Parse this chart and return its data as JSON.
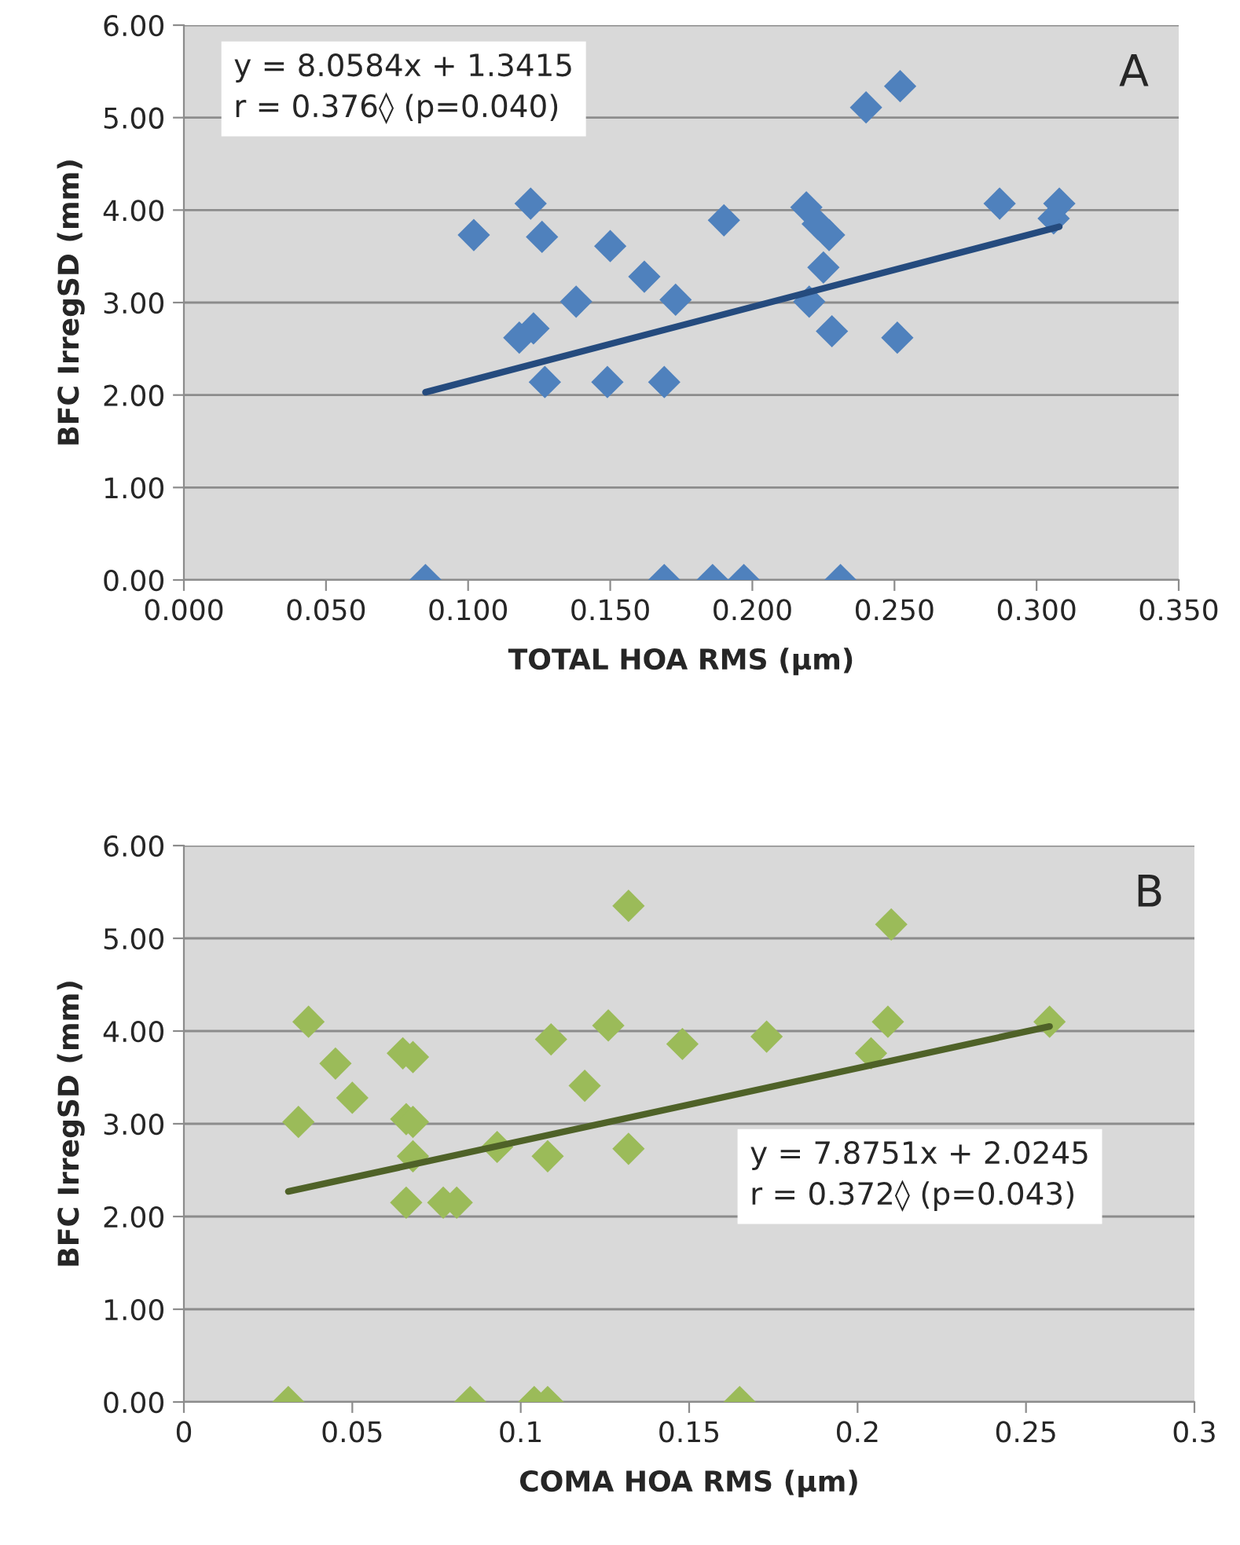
{
  "chart_data": [
    {
      "type": "scatter",
      "xlabel": "TOTAL HOA RMS (µm)",
      "ylabel": "BFC IrregSD (mm)",
      "annotations": [
        "y = 8.0584x + 1.3415\nr = 0.376◊ (p=0.040)",
        "A"
      ],
      "xlim": [
        0,
        0.35
      ],
      "ylim": [
        0,
        6
      ],
      "xticks": [
        {
          "value": 0,
          "label": "0.000"
        },
        {
          "value": 0.05,
          "label": "0.050"
        },
        {
          "value": 0.1,
          "label": "0.100"
        },
        {
          "value": 0.15,
          "label": "0.150"
        },
        {
          "value": 0.2,
          "label": "0.200"
        },
        {
          "value": 0.25,
          "label": "0.250"
        },
        {
          "value": 0.3,
          "label": "0.300"
        },
        {
          "value": 0.35,
          "label": "0.350"
        }
      ],
      "yticks": [
        {
          "value": 0,
          "label": "0.00"
        },
        {
          "value": 1,
          "label": "1.00"
        },
        {
          "value": 2,
          "label": "2.00"
        },
        {
          "value": 3,
          "label": "3.00"
        },
        {
          "value": 4,
          "label": "4.00"
        },
        {
          "value": 5,
          "label": "5.00"
        },
        {
          "value": 6,
          "label": "6.00"
        }
      ],
      "grid": "y",
      "series": [
        {
          "marker": "diamond",
          "color": "#4f81bd",
          "x": [
            0.085,
            0.102,
            0.122,
            0.126,
            0.118,
            0.123,
            0.127,
            0.138,
            0.15,
            0.149,
            0.162,
            0.173,
            0.169,
            0.169,
            0.186,
            0.197,
            0.19,
            0.219,
            0.223,
            0.227,
            0.225,
            0.22,
            0.228,
            0.231,
            0.24,
            0.252,
            0.251,
            0.287,
            0.306,
            0.308
          ],
          "values": [
            0,
            3.73,
            4.07,
            3.71,
            2.62,
            2.72,
            2.14,
            3.01,
            3.61,
            2.14,
            3.28,
            3.03,
            2.14,
            0,
            0,
            0,
            3.89,
            4.03,
            3.85,
            3.73,
            3.38,
            3.01,
            2.69,
            0,
            5.11,
            5.34,
            2.62,
            4.07,
            3.91,
            4.07
          ]
        },
        {
          "type": "line",
          "color": "#254b7e",
          "x": [
            0.085,
            0.308
          ],
          "values": [
            2.03,
            3.82
          ]
        }
      ]
    },
    {
      "type": "scatter",
      "xlabel": "COMA HOA RMS (µm)",
      "ylabel": "BFC IrregSD (mm)",
      "annotations": [
        "y = 7.8751x + 2.0245\nr = 0.372◊ (p=0.043)",
        "B"
      ],
      "xlim": [
        0,
        0.3
      ],
      "ylim": [
        0,
        6
      ],
      "xticks": [
        0,
        0.05,
        0.1,
        0.15,
        0.2,
        0.25,
        0.3
      ],
      "yticks": [
        {
          "value": 0,
          "label": "0.00"
        },
        {
          "value": 1,
          "label": "1.00"
        },
        {
          "value": 2,
          "label": "2.00"
        },
        {
          "value": 3,
          "label": "3.00"
        },
        {
          "value": 4,
          "label": "4.00"
        },
        {
          "value": 5,
          "label": "5.00"
        },
        {
          "value": 6,
          "label": "6.00"
        }
      ],
      "grid": "y",
      "series": [
        {
          "marker": "diamond",
          "color": "#9bbb59",
          "x": [
            0.031,
            0.037,
            0.034,
            0.045,
            0.05,
            0.065,
            0.068,
            0.066,
            0.068,
            0.068,
            0.066,
            0.077,
            0.081,
            0.085,
            0.093,
            0.104,
            0.108,
            0.108,
            0.109,
            0.119,
            0.126,
            0.132,
            0.132,
            0.148,
            0.165,
            0.173,
            0.204,
            0.209,
            0.21,
            0.257
          ],
          "values": [
            0,
            4.1,
            3.02,
            3.65,
            3.28,
            3.76,
            3.72,
            3.05,
            3.02,
            2.65,
            2.15,
            2.15,
            2.15,
            0,
            2.75,
            0,
            0,
            2.65,
            3.91,
            3.41,
            4.06,
            5.35,
            2.73,
            3.86,
            0,
            3.94,
            3.76,
            4.1,
            5.15,
            4.1
          ]
        },
        {
          "type": "line",
          "color": "#4f6228",
          "x": [
            0.031,
            0.257
          ],
          "values": [
            2.27,
            4.05
          ]
        }
      ]
    }
  ]
}
